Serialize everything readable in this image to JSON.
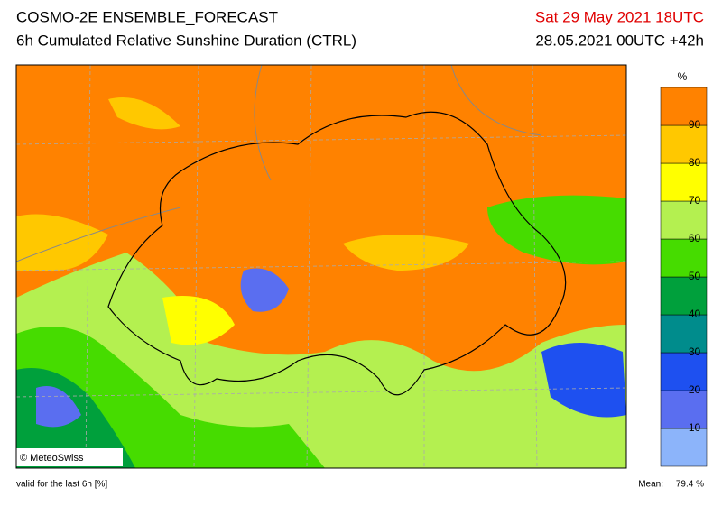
{
  "header": {
    "title": "COSMO-2E ENSEMBLE_FORECAST",
    "subtitle": "6h Cumulated Relative Sunshine Duration (CTRL)",
    "valid_time": "Sat 29 May 2021 18UTC",
    "run": "28.05.2021 00UTC +42h"
  },
  "colorbar": {
    "unit": "%",
    "levels": [
      10,
      20,
      30,
      40,
      50,
      60,
      70,
      80,
      90
    ],
    "colors": [
      "#8cb4fa",
      "#5a6ef0",
      "#1e50f0",
      "#008c8c",
      "#00a03c",
      "#46dc00",
      "#b4f050",
      "#ffff00",
      "#ffc800",
      "#ff8200"
    ]
  },
  "map": {
    "credit": "© MeteoSwiss"
  },
  "footer": {
    "note": "valid for the last 6h [%]",
    "mean_label": "Mean:",
    "mean": "79.4 %"
  }
}
